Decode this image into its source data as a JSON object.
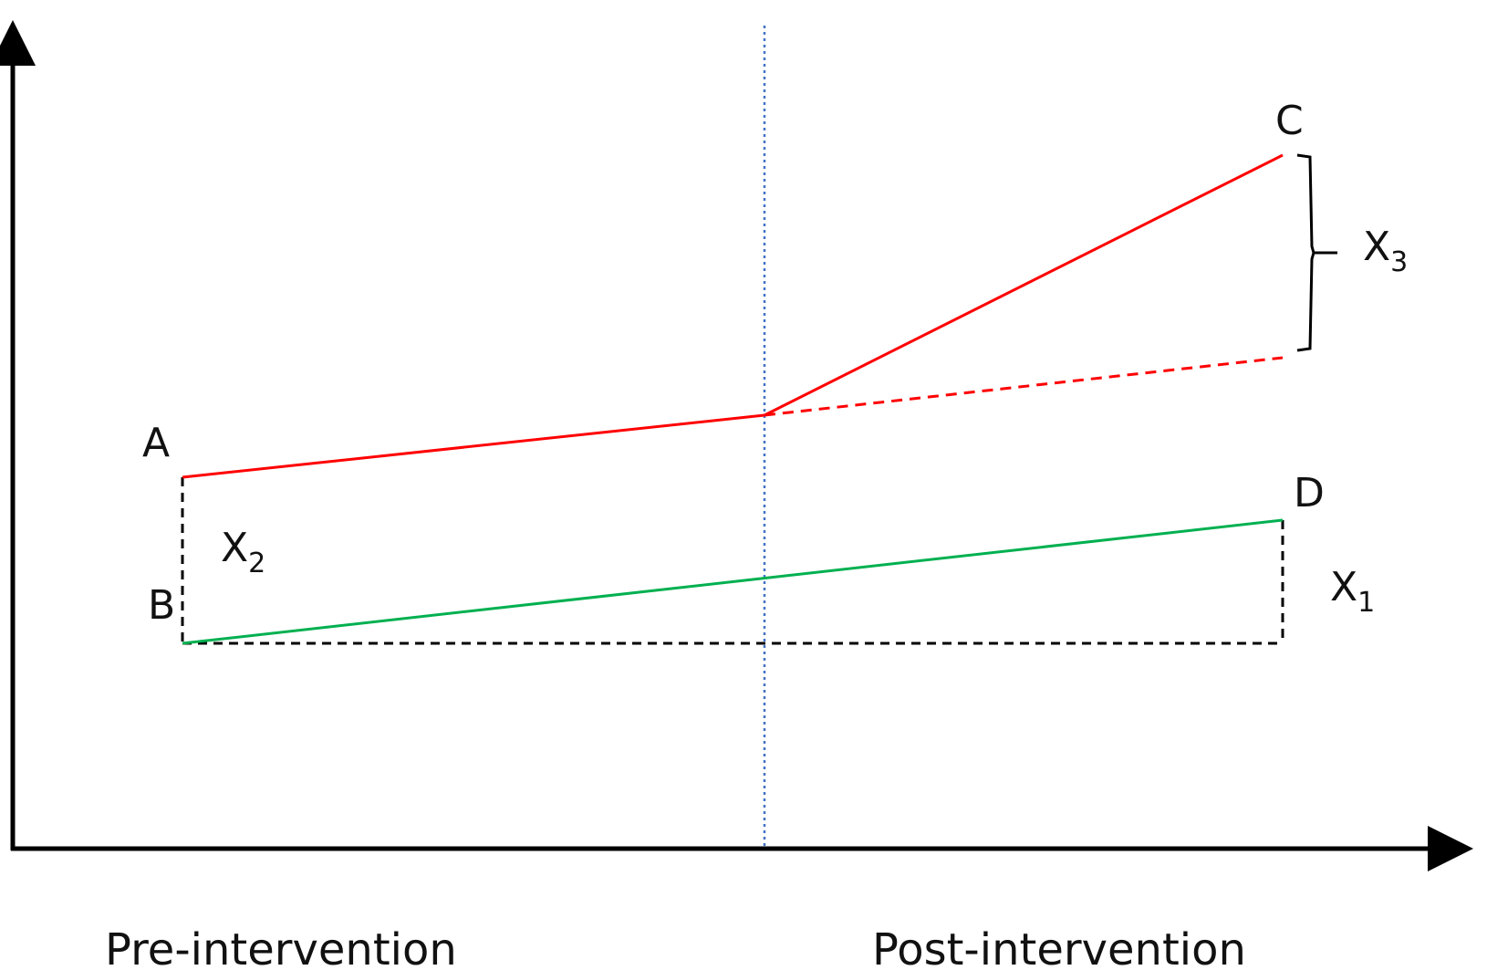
{
  "points": {
    "a": "A",
    "b": "B",
    "c": "C",
    "d": "D"
  },
  "gaps": {
    "x1": {
      "base": "X",
      "sub": "1"
    },
    "x2": {
      "base": "X",
      "sub": "2"
    },
    "x3": {
      "base": "X",
      "sub": "3"
    }
  },
  "periods": {
    "pre": "Pre-intervention",
    "post": "Post-intervention"
  },
  "colors": {
    "intervention": "#ff0000",
    "control": "#00b050",
    "reference": "#000000",
    "divider": "#4472c4",
    "axis": "#000000"
  }
}
